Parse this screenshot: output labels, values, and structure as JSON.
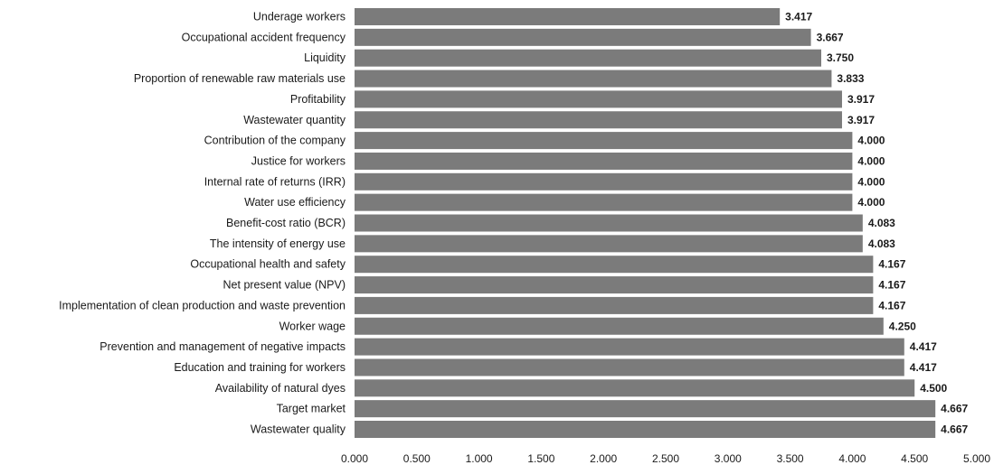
{
  "chart_data": {
    "type": "bar",
    "orientation": "horizontal",
    "title": "",
    "xlabel": "",
    "ylabel": "",
    "xlim": [
      0,
      5
    ],
    "x_ticks": [
      "0.000",
      "0.500",
      "1.000",
      "1.500",
      "2.000",
      "2.500",
      "3.000",
      "3.500",
      "4.000",
      "4.500",
      "5.000"
    ],
    "grid": false,
    "bar_color": "#7b7b7b",
    "categories": [
      "Underage workers",
      "Occupational accident frequency",
      "Liquidity",
      "Proportion of renewable raw materials use",
      "Profitability",
      "Wastewater quantity",
      "Contribution of the company",
      "Justice for workers",
      "Internal rate of returns (IRR)",
      "Water use efficiency",
      "Benefit-cost ratio (BCR)",
      "The intensity of energy use",
      "Occupational health and safety",
      "Net present value (NPV)",
      "Implementation of clean production and waste prevention",
      "Worker wage",
      "Prevention and management of negative impacts",
      "Education and training for workers",
      "Availability of natural dyes",
      "Target market",
      "Wastewater quality"
    ],
    "values": [
      3.417,
      3.667,
      3.75,
      3.833,
      3.917,
      3.917,
      4.0,
      4.0,
      4.0,
      4.0,
      4.083,
      4.083,
      4.167,
      4.167,
      4.167,
      4.25,
      4.417,
      4.417,
      4.5,
      4.667,
      4.667
    ],
    "value_labels": [
      "3.417",
      "3.667",
      "3.750",
      "3.833",
      "3.917",
      "3.917",
      "4.000",
      "4.000",
      "4.000",
      "4.000",
      "4.083",
      "4.083",
      "4.167",
      "4.167",
      "4.167",
      "4.250",
      "4.417",
      "4.417",
      "4.500",
      "4.667",
      "4.667"
    ]
  }
}
